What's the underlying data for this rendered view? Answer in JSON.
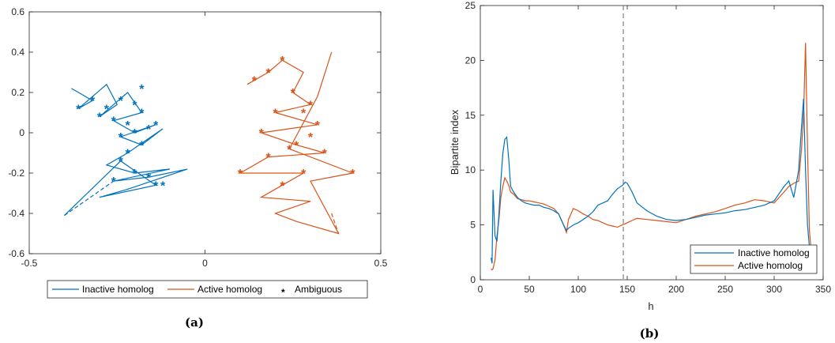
{
  "colors": {
    "inactive": "#0072BD",
    "active": "#D95319",
    "axis": "#262626",
    "dashed": "#808080"
  },
  "chart_data": [
    {
      "type": "line",
      "caption": "(a)",
      "xlim": [
        -0.5,
        0.5
      ],
      "ylim": [
        -0.6,
        0.6
      ],
      "xticks": [
        -0.5,
        0,
        0.5
      ],
      "xtick_labels": [
        "-0.5",
        "0",
        "0.5"
      ],
      "yticks": [
        -0.6,
        -0.4,
        -0.2,
        0,
        0.2,
        0.4,
        0.6
      ],
      "ytick_labels": [
        "-0.6",
        "-0.4",
        "-0.2",
        "0",
        "0.2",
        "0.4",
        "0.6"
      ],
      "legend": {
        "placement": "bottom-outside",
        "entries": [
          "Inactive homolog",
          "Active homolog",
          "Ambiguous"
        ]
      },
      "series": [
        {
          "name": "Inactive homolog",
          "points": [
            [
              -0.38,
              0.22
            ],
            [
              -0.32,
              0.16
            ],
            [
              -0.36,
              0.12
            ],
            [
              -0.28,
              0.24
            ],
            [
              -0.25,
              0.14
            ],
            [
              -0.3,
              0.08
            ],
            [
              -0.22,
              0.2
            ],
            [
              -0.18,
              0.1
            ],
            [
              -0.26,
              0.06
            ],
            [
              -0.2,
              0.0
            ],
            [
              -0.14,
              0.04
            ],
            [
              -0.24,
              -0.02
            ],
            [
              -0.18,
              -0.06
            ],
            [
              -0.12,
              0.02
            ],
            [
              -0.22,
              -0.1
            ],
            [
              -0.28,
              -0.16
            ],
            [
              -0.2,
              -0.2
            ],
            [
              -0.1,
              -0.18
            ],
            [
              -0.26,
              -0.24
            ],
            [
              -0.16,
              -0.22
            ],
            [
              -0.05,
              -0.18
            ],
            [
              -0.22,
              -0.28
            ],
            [
              -0.3,
              -0.32
            ],
            [
              -0.14,
              -0.26
            ],
            [
              -0.24,
              -0.14
            ],
            [
              -0.4,
              -0.41
            ]
          ],
          "dashed": [
            [
              -0.4,
              -0.41
            ],
            [
              -0.26,
              -0.24
            ]
          ]
        },
        {
          "name": "Active homolog",
          "points": [
            [
              0.12,
              0.24
            ],
            [
              0.18,
              0.3
            ],
            [
              0.22,
              0.36
            ],
            [
              0.28,
              0.3
            ],
            [
              0.25,
              0.2
            ],
            [
              0.3,
              0.14
            ],
            [
              0.2,
              0.1
            ],
            [
              0.32,
              0.04
            ],
            [
              0.16,
              0.0
            ],
            [
              0.26,
              -0.06
            ],
            [
              0.34,
              -0.1
            ],
            [
              0.18,
              -0.12
            ],
            [
              0.1,
              -0.2
            ],
            [
              0.28,
              -0.2
            ],
            [
              0.22,
              -0.26
            ],
            [
              0.16,
              -0.32
            ],
            [
              0.3,
              -0.34
            ],
            [
              0.2,
              -0.4
            ],
            [
              0.26,
              -0.44
            ],
            [
              0.38,
              -0.5
            ],
            [
              0.3,
              -0.24
            ],
            [
              0.42,
              -0.2
            ],
            [
              0.24,
              -0.08
            ],
            [
              0.32,
              0.18
            ],
            [
              0.36,
              0.4
            ]
          ],
          "dashed": [
            [
              0.36,
              -0.4
            ],
            [
              0.38,
              -0.5
            ]
          ]
        },
        {
          "name": "Ambiguous",
          "marker": "*",
          "points": [
            [
              -0.32,
              0.16
            ],
            [
              -0.36,
              0.12
            ],
            [
              -0.28,
              0.12
            ],
            [
              -0.24,
              0.16
            ],
            [
              -0.2,
              0.14
            ],
            [
              -0.3,
              0.08
            ],
            [
              -0.18,
              0.1
            ],
            [
              -0.22,
              0.04
            ],
            [
              -0.26,
              0.06
            ],
            [
              -0.2,
              0.0
            ],
            [
              -0.14,
              0.04
            ],
            [
              -0.24,
              -0.02
            ],
            [
              -0.18,
              -0.06
            ],
            [
              -0.16,
              0.02
            ],
            [
              -0.22,
              -0.1
            ],
            [
              -0.2,
              -0.2
            ],
            [
              -0.16,
              -0.22
            ],
            [
              -0.26,
              -0.24
            ],
            [
              -0.14,
              -0.26
            ],
            [
              -0.24,
              -0.14
            ],
            [
              -0.18,
              0.22
            ],
            [
              -0.12,
              -0.26
            ],
            [
              0.14,
              0.26
            ],
            [
              0.18,
              0.3
            ],
            [
              0.22,
              0.36
            ],
            [
              0.25,
              0.2
            ],
            [
              0.3,
              0.14
            ],
            [
              0.32,
              0.04
            ],
            [
              0.26,
              -0.06
            ],
            [
              0.18,
              -0.12
            ],
            [
              0.1,
              -0.2
            ],
            [
              0.28,
              -0.2
            ],
            [
              0.22,
              -0.26
            ],
            [
              0.34,
              -0.1
            ],
            [
              0.16,
              0.0
            ],
            [
              0.2,
              0.1
            ],
            [
              0.42,
              -0.2
            ],
            [
              0.24,
              -0.08
            ],
            [
              0.28,
              0.1
            ],
            [
              0.3,
              -0.02
            ]
          ]
        }
      ]
    },
    {
      "type": "line",
      "caption": "(b)",
      "xlabel": "h",
      "ylabel": "Bipartite index",
      "xlim": [
        0,
        350
      ],
      "ylim": [
        0,
        25
      ],
      "xticks": [
        0,
        50,
        100,
        150,
        200,
        250,
        300,
        350
      ],
      "xtick_labels": [
        "0",
        "50",
        "100",
        "150",
        "200",
        "250",
        "300",
        "350"
      ],
      "yticks": [
        0,
        5,
        10,
        15,
        20,
        25
      ],
      "ytick_labels": [
        "0",
        "5",
        "10",
        "15",
        "20",
        "25"
      ],
      "vline": {
        "x": 146,
        "style": "dashed"
      },
      "legend": {
        "placement": "bottom-right",
        "entries": [
          "Inactive homolog",
          "Active homolog"
        ]
      },
      "series": [
        {
          "name": "Inactive homolog",
          "x": [
            11,
            12,
            13,
            15,
            17,
            19,
            21,
            23,
            25,
            27,
            29,
            31,
            34,
            38,
            42,
            46,
            50,
            55,
            60,
            65,
            70,
            75,
            80,
            85,
            88,
            90,
            95,
            100,
            105,
            110,
            115,
            120,
            125,
            130,
            135,
            140,
            145,
            148,
            150,
            155,
            160,
            170,
            180,
            190,
            200,
            210,
            220,
            230,
            240,
            250,
            260,
            270,
            280,
            290,
            300,
            310,
            315,
            320,
            325,
            328,
            330,
            332,
            334,
            336,
            338
          ],
          "values": [
            2.0,
            1.5,
            8.2,
            4.0,
            3.5,
            6.0,
            9.0,
            11.5,
            12.8,
            13.0,
            11.0,
            8.5,
            8.0,
            7.5,
            7.2,
            7.0,
            6.9,
            6.8,
            6.8,
            6.6,
            6.5,
            6.3,
            6.0,
            5.0,
            4.5,
            4.7,
            5.0,
            5.2,
            5.5,
            5.8,
            6.2,
            6.8,
            7.0,
            7.2,
            7.8,
            8.3,
            8.6,
            8.9,
            8.8,
            8.0,
            7.0,
            6.3,
            5.8,
            5.5,
            5.4,
            5.5,
            5.7,
            5.9,
            6.0,
            6.1,
            6.3,
            6.4,
            6.6,
            6.8,
            7.2,
            8.5,
            9.0,
            7.5,
            10.0,
            14.0,
            16.5,
            10.0,
            5.0,
            3.0,
            2.0
          ]
        },
        {
          "name": "Active homolog",
          "x": [
            11,
            12,
            13,
            15,
            17,
            19,
            21,
            23,
            25,
            27,
            29,
            31,
            34,
            38,
            42,
            46,
            50,
            55,
            60,
            65,
            70,
            75,
            80,
            85,
            88,
            90,
            95,
            100,
            105,
            110,
            115,
            120,
            125,
            130,
            135,
            140,
            145,
            148,
            150,
            155,
            160,
            170,
            180,
            190,
            200,
            210,
            220,
            230,
            240,
            250,
            260,
            270,
            280,
            290,
            300,
            310,
            315,
            320,
            325,
            328,
            330,
            332,
            334,
            336,
            338
          ],
          "values": [
            1.0,
            0.9,
            1.0,
            1.8,
            4.0,
            5.5,
            7.5,
            8.5,
            9.3,
            9.0,
            8.6,
            8.0,
            7.8,
            7.4,
            7.3,
            7.2,
            7.2,
            7.1,
            7.0,
            6.9,
            6.7,
            6.5,
            6.0,
            5.0,
            4.3,
            5.5,
            6.5,
            6.3,
            6.0,
            5.8,
            5.5,
            5.4,
            5.2,
            5.0,
            4.9,
            4.8,
            5.0,
            5.1,
            5.2,
            5.4,
            5.6,
            5.5,
            5.4,
            5.3,
            5.2,
            5.5,
            5.8,
            6.0,
            6.2,
            6.5,
            6.8,
            7.0,
            7.3,
            7.2,
            7.0,
            8.0,
            8.5,
            8.8,
            9.0,
            12.0,
            15.0,
            21.6,
            12.0,
            4.5,
            2.5
          ]
        }
      ]
    }
  ]
}
